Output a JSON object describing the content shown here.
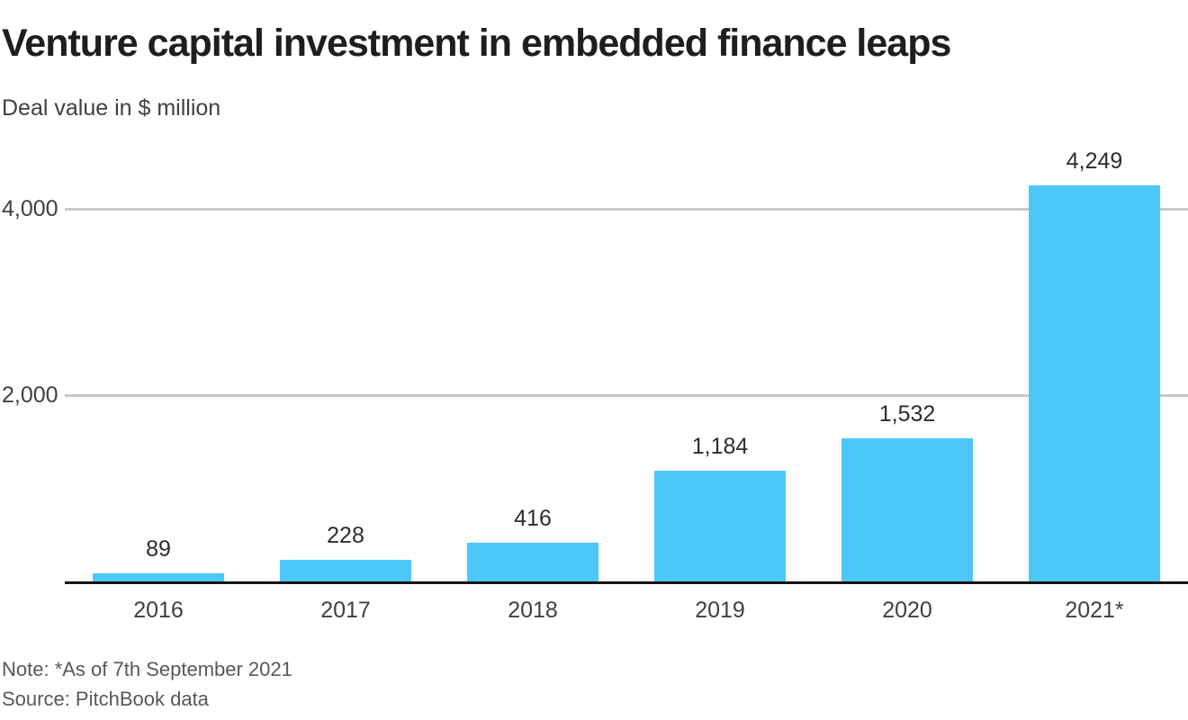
{
  "header": {
    "title": "Venture capital investment in embedded finance leaps",
    "subtitle": "Deal value in $ million"
  },
  "footer": {
    "note": "Note: *As of 7th September 2021",
    "source": "Source: PitchBook data"
  },
  "chart_data": {
    "type": "bar",
    "title": "Venture capital investment in embedded finance leaps",
    "subtitle": "Deal value in $ million",
    "categories": [
      "2016",
      "2017",
      "2018",
      "2019",
      "2020",
      "2021*"
    ],
    "values": [
      89,
      228,
      416,
      1184,
      1532,
      4249
    ],
    "value_labels": [
      "89",
      "228",
      "416",
      "1,184",
      "1,532",
      "4,249"
    ],
    "xlabel": "",
    "ylabel": "Deal value in $ million",
    "ylim": [
      0,
      4400
    ],
    "yticks": [
      {
        "value": 2000,
        "label": "2,000"
      },
      {
        "value": 4000,
        "label": "4,000"
      }
    ],
    "grid": true,
    "legend": false,
    "bar_color": "#4dc7f7",
    "note": "Note: *As of 7th September 2021",
    "source": "Source: PitchBook data"
  },
  "colors": {
    "bar": "#4dc7f7",
    "axis": "#161616",
    "gridline": "#c9c9c9",
    "title_text": "#1e1e1e",
    "muted_text": "#404040",
    "value_text": "#2d2d2d",
    "note_text": "#58585a"
  }
}
